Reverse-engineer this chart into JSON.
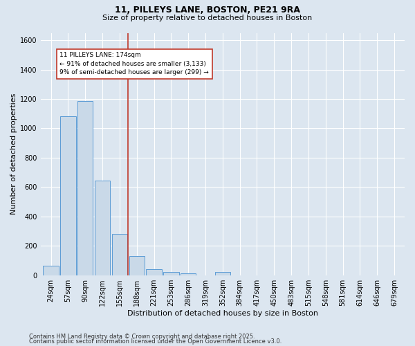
{
  "title": "11, PILLEYS LANE, BOSTON, PE21 9RA",
  "subtitle": "Size of property relative to detached houses in Boston",
  "xlabel": "Distribution of detached houses by size in Boston",
  "ylabel": "Number of detached properties",
  "footnote1": "Contains HM Land Registry data © Crown copyright and database right 2025.",
  "footnote2": "Contains public sector information licensed under the Open Government Licence v3.0.",
  "bar_color": "#c9d9e8",
  "bar_edge_color": "#5b9bd5",
  "bin_labels": [
    "24sqm",
    "57sqm",
    "90sqm",
    "122sqm",
    "155sqm",
    "188sqm",
    "221sqm",
    "253sqm",
    "286sqm",
    "319sqm",
    "352sqm",
    "384sqm",
    "417sqm",
    "450sqm",
    "483sqm",
    "515sqm",
    "548sqm",
    "581sqm",
    "614sqm",
    "646sqm",
    "679sqm"
  ],
  "bar_heights": [
    65,
    1080,
    1185,
    645,
    280,
    130,
    40,
    20,
    15,
    0,
    20,
    0,
    0,
    0,
    0,
    0,
    0,
    0,
    0,
    0,
    0
  ],
  "ylim": [
    0,
    1650
  ],
  "yticks": [
    0,
    200,
    400,
    600,
    800,
    1000,
    1200,
    1400,
    1600
  ],
  "vline_pos": 4.5,
  "vline_color": "#c0392b",
  "annotation_text": "11 PILLEYS LANE: 174sqm\n← 91% of detached houses are smaller (3,133)\n9% of semi-detached houses are larger (299) →",
  "annotation_box_color": "#ffffff",
  "annotation_box_edge": "#c0392b",
  "background_color": "#dce6f0",
  "grid_color": "#ffffff",
  "title_fontsize": 9,
  "subtitle_fontsize": 8,
  "ylabel_fontsize": 8,
  "xlabel_fontsize": 8,
  "footnote_fontsize": 6,
  "tick_fontsize": 7
}
